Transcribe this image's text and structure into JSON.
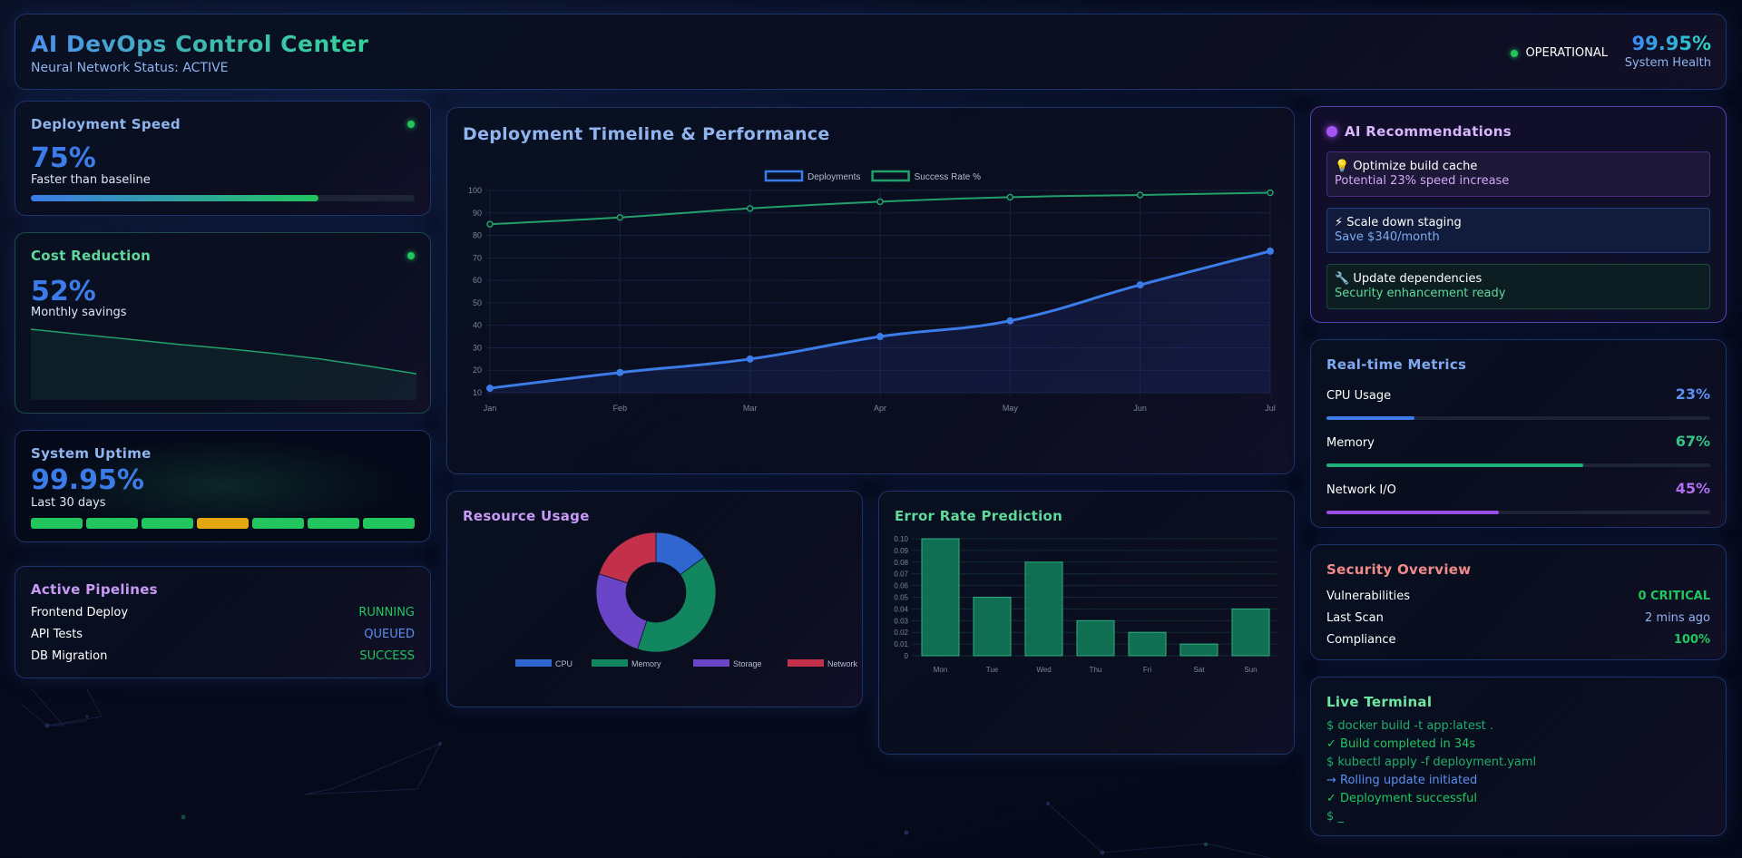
{
  "header": {
    "title": "AI DevOps Control Center",
    "subtitle": "Neural Network Status: ACTIVE",
    "status_label": "OPERATIONAL",
    "health_value": "99.95%",
    "health_label": "System Health"
  },
  "deployment_speed": {
    "title": "Deployment Speed",
    "value": "75%",
    "caption": "Faster than baseline",
    "progress_pct": 75
  },
  "cost_reduction": {
    "title": "Cost Reduction",
    "value": "52%",
    "caption": "Monthly savings",
    "trend": [
      100,
      93,
      86,
      79,
      73,
      66,
      58,
      48,
      37
    ]
  },
  "system_uptime": {
    "title": "System Uptime",
    "value": "99.95%",
    "caption": "Last 30 days",
    "segments": [
      "ok",
      "ok",
      "ok",
      "warn",
      "ok",
      "ok",
      "ok"
    ]
  },
  "pipelines": {
    "title": "Active Pipelines",
    "items": [
      {
        "name": "Frontend Deploy",
        "status": "RUNNING",
        "color": "#22c55e"
      },
      {
        "name": "API Tests",
        "status": "QUEUED",
        "color": "#5b8ff0"
      },
      {
        "name": "DB Migration",
        "status": "SUCCESS",
        "color": "#22c55e"
      }
    ]
  },
  "timeline": {
    "title": "Deployment Timeline & Performance"
  },
  "resource_usage": {
    "title": "Resource Usage"
  },
  "error_rate": {
    "title": "Error Rate Prediction"
  },
  "chart_data": [
    {
      "type": "line",
      "title": "Deployment Timeline & Performance",
      "categories": [
        "Jan",
        "Feb",
        "Mar",
        "Apr",
        "May",
        "Jun",
        "Jul"
      ],
      "series": [
        {
          "name": "Deployments",
          "values": [
            12,
            19,
            25,
            35,
            42,
            58,
            73
          ],
          "color": "#3b7ce8",
          "fill": true
        },
        {
          "name": "Success Rate %",
          "values": [
            85,
            88,
            92,
            95,
            97,
            98,
            99
          ],
          "color": "#22a06b",
          "fill": false
        }
      ],
      "yticks": [
        10,
        20,
        30,
        40,
        50,
        60,
        70,
        80,
        90,
        100
      ],
      "ylim": [
        10,
        100
      ],
      "xlabel": "",
      "ylabel": "",
      "grid": true,
      "legend_position": "top"
    },
    {
      "type": "pie",
      "title": "Resource Usage",
      "donut": true,
      "categories": [
        "CPU",
        "Memory",
        "Storage",
        "Network"
      ],
      "values": [
        15,
        40,
        25,
        20
      ],
      "colors": [
        "#2f66d0",
        "#12875f",
        "#6a45c8",
        "#c2304a"
      ],
      "legend_position": "bottom"
    },
    {
      "type": "bar",
      "title": "Error Rate Prediction",
      "categories": [
        "Mon",
        "Tue",
        "Wed",
        "Thu",
        "Fri",
        "Sat",
        "Sun"
      ],
      "values": [
        0.1,
        0.05,
        0.08,
        0.03,
        0.02,
        0.01,
        0.04
      ],
      "yticks": [
        "0",
        "0.01",
        "0.02",
        "0.03",
        "0.04",
        "0.05",
        "0.06",
        "0.07",
        "0.08",
        "0.09",
        "0.10"
      ],
      "ylim": [
        0,
        0.1
      ],
      "grid": true,
      "color": "#127a58"
    }
  ],
  "recommendations": {
    "title": "AI Recommendations",
    "items": [
      {
        "icon": "💡",
        "title": "Optimize build cache",
        "detail": "Potential 23% speed increase"
      },
      {
        "icon": "⚡",
        "title": "Scale down staging",
        "detail": "Save $340/month"
      },
      {
        "icon": "🔧",
        "title": "Update dependencies",
        "detail": "Security enhancement ready"
      }
    ]
  },
  "metrics": {
    "title": "Real-time Metrics",
    "items": [
      {
        "name": "CPU Usage",
        "value": "23%",
        "pct": 23,
        "color": "#3b7ce8"
      },
      {
        "name": "Memory",
        "value": "67%",
        "pct": 67,
        "color": "#22b07a"
      },
      {
        "name": "Network I/O",
        "value": "45%",
        "pct": 45,
        "color": "#9b4de8"
      }
    ]
  },
  "security": {
    "title": "Security Overview",
    "items": [
      {
        "name": "Vulnerabilities",
        "value": "0 CRITICAL"
      },
      {
        "name": "Last Scan",
        "value": "2 mins ago"
      },
      {
        "name": "Compliance",
        "value": "100%"
      }
    ]
  },
  "terminal": {
    "title": "Live Terminal",
    "lines": [
      "$ docker build -t app:latest .",
      "✓ Build completed in 34s",
      "$ kubectl apply -f deployment.yaml",
      "→ Rolling update initiated",
      "✓ Deployment successful",
      "$ _"
    ]
  }
}
